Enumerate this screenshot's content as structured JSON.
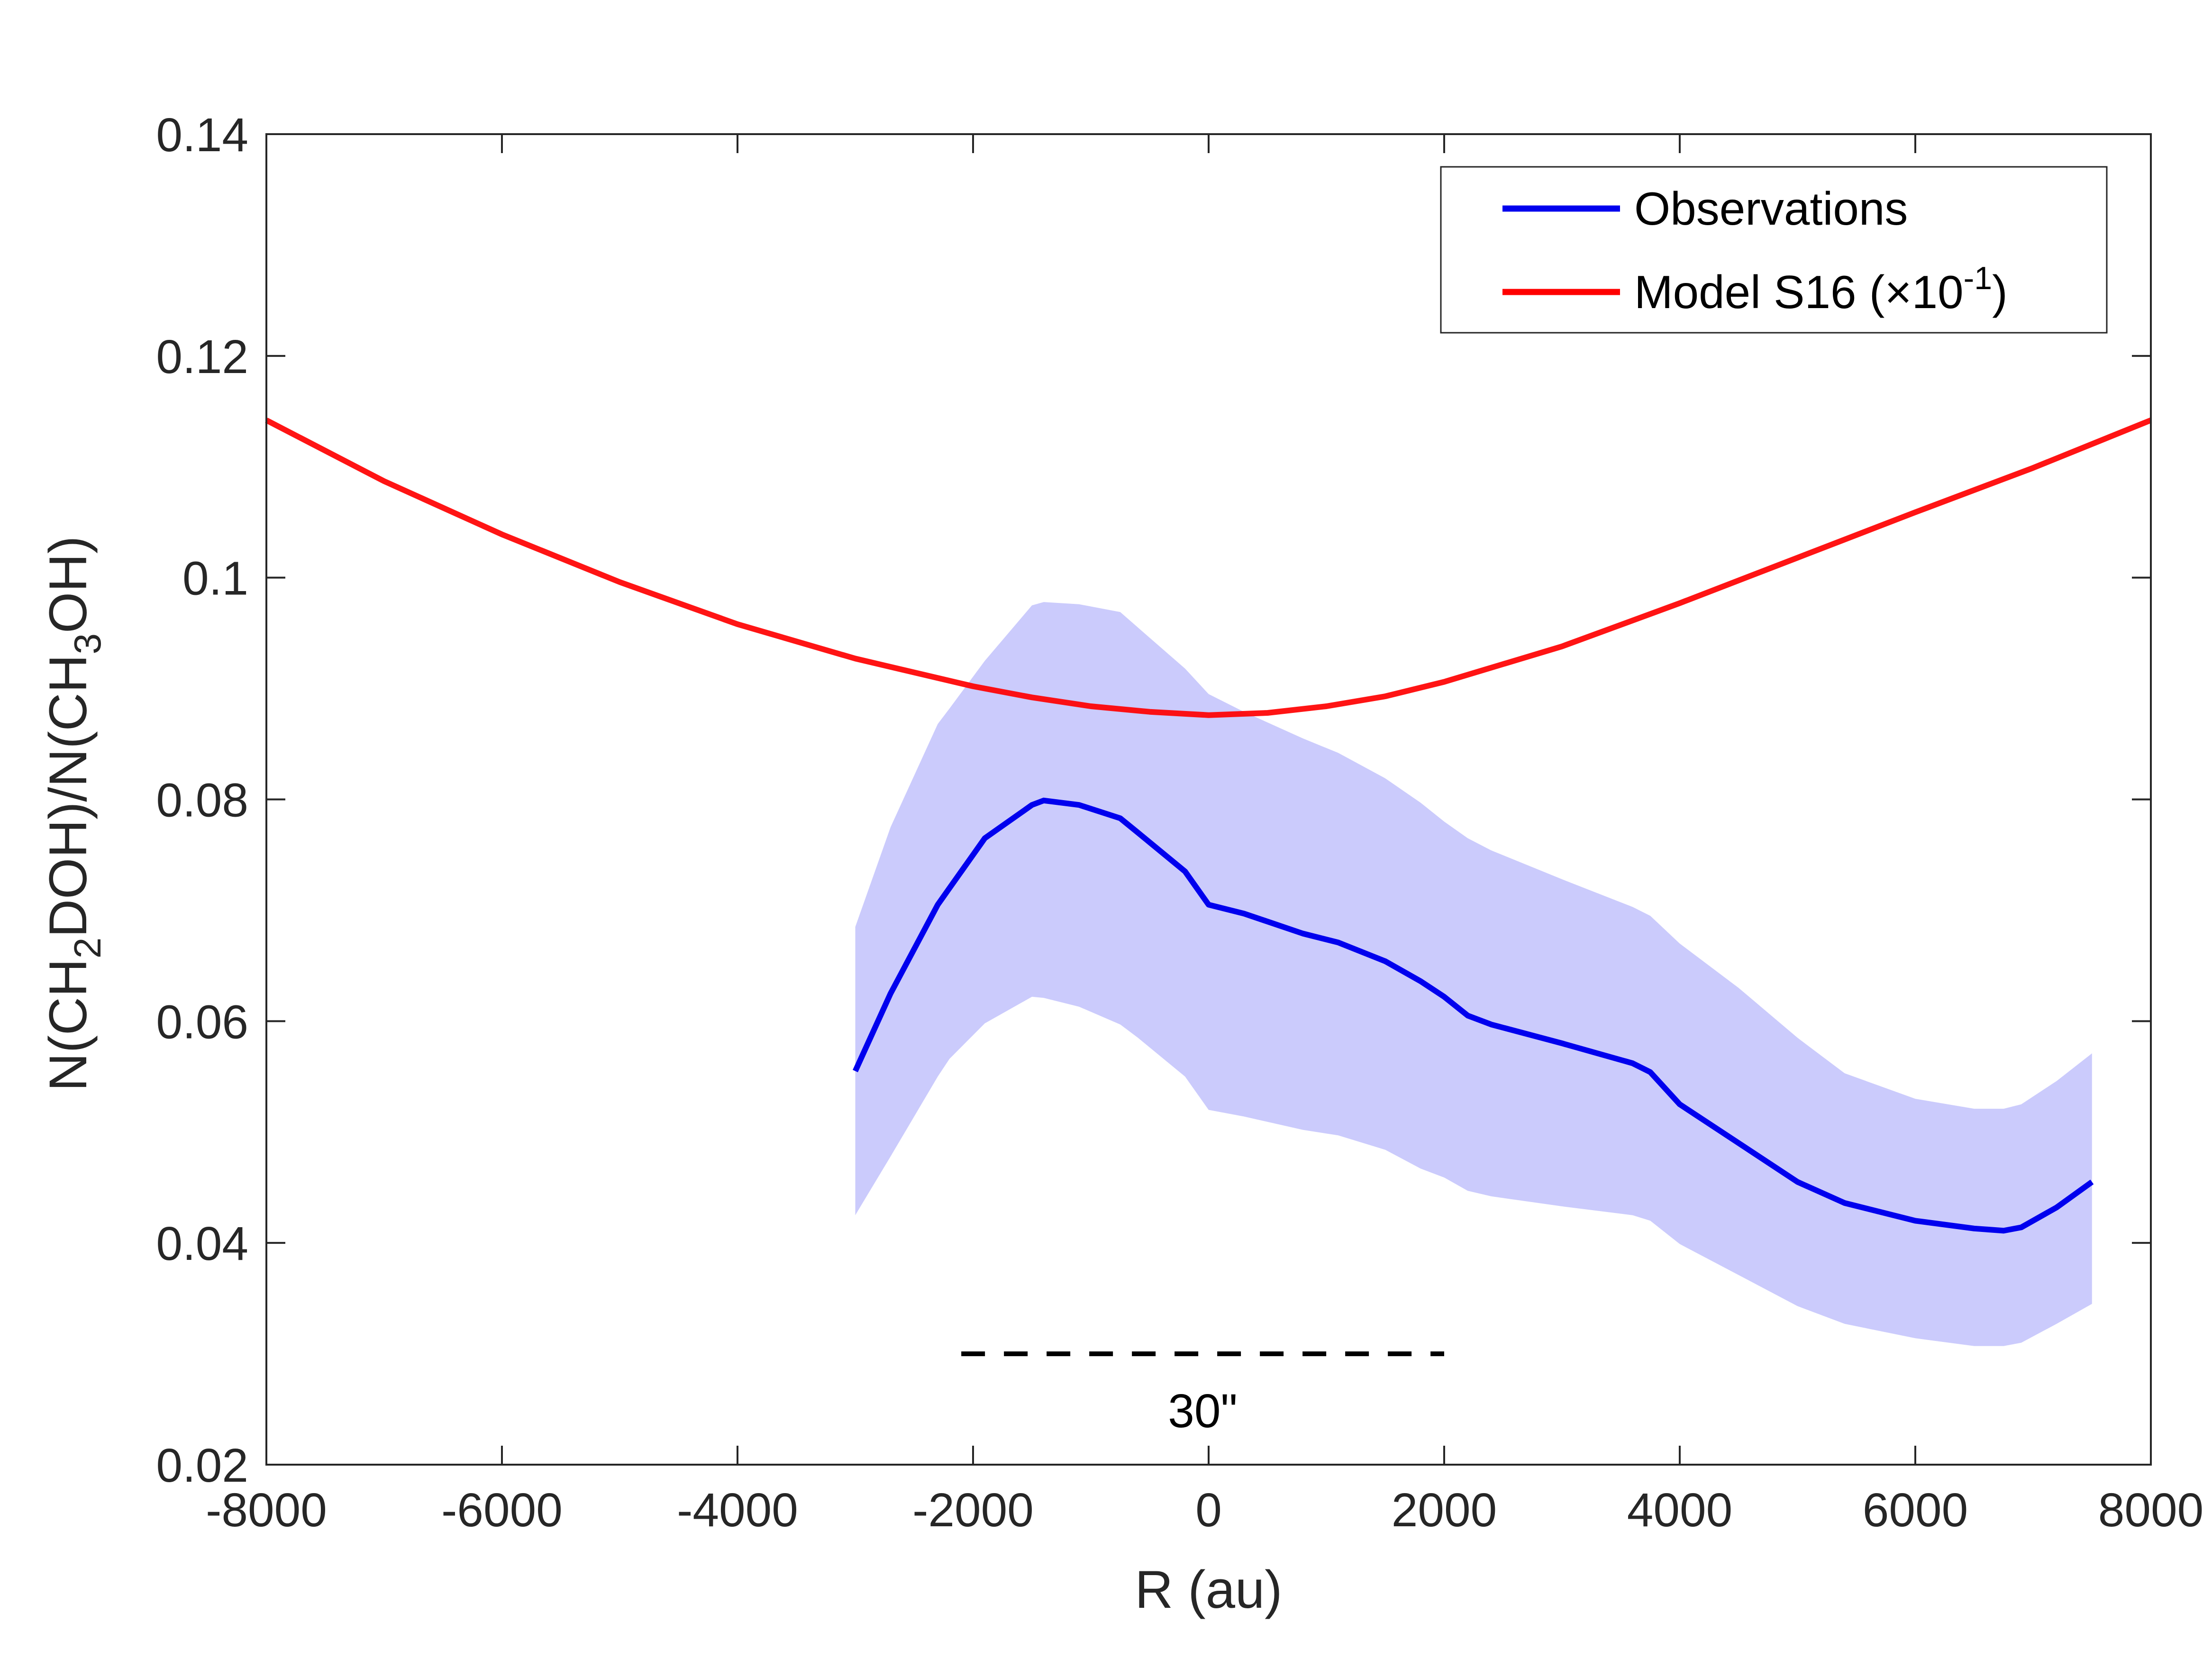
{
  "chart_data": {
    "type": "line",
    "title": "",
    "xlabel": "R (au)",
    "ylabel_parts": [
      "N(CH",
      "2",
      "DOH)/N(CH",
      "3",
      "OH)"
    ],
    "xlim": [
      -8000,
      8000
    ],
    "ylim": [
      0.02,
      0.14
    ],
    "x_ticks": [
      -8000,
      -6000,
      -4000,
      -2000,
      0,
      2000,
      4000,
      6000,
      8000
    ],
    "x_tick_labels": [
      "-8000",
      "-6000",
      "-4000",
      "-2000",
      "0",
      "2000",
      "4000",
      "6000",
      "8000"
    ],
    "y_ticks": [
      0.02,
      0.04,
      0.06,
      0.08,
      0.1,
      0.12,
      0.14
    ],
    "y_tick_labels": [
      "0.02",
      "0.04",
      "0.06",
      "0.08",
      "0.1",
      "0.12",
      "0.14"
    ],
    "grid": false,
    "legend_position": "top-right",
    "series": [
      {
        "name": "Observations",
        "color": "#0000ee",
        "x": [
          -3000,
          -2700,
          -2300,
          -2200,
          -1900,
          -1500,
          -1400,
          -1100,
          -750,
          -600,
          -200,
          0,
          300,
          800,
          1100,
          1500,
          1800,
          2000,
          2200,
          2400,
          3000,
          3600,
          3750,
          4000,
          4500,
          5000,
          5400,
          6000,
          6500,
          6750,
          6900,
          7200,
          7500
        ],
        "y": [
          0.0555,
          0.0625,
          0.0705,
          0.072,
          0.0765,
          0.0795,
          0.0799,
          0.0795,
          0.0783,
          0.077,
          0.0735,
          0.0705,
          0.0697,
          0.0679,
          0.0671,
          0.0654,
          0.0636,
          0.0622,
          0.0605,
          0.0597,
          0.058,
          0.0562,
          0.0554,
          0.0525,
          0.049,
          0.0455,
          0.0436,
          0.042,
          0.0413,
          0.0411,
          0.0414,
          0.0432,
          0.0455
        ],
        "upper": [
          0.0685,
          0.0775,
          0.0868,
          0.0882,
          0.0925,
          0.0975,
          0.0978,
          0.0976,
          0.0969,
          0.0955,
          0.0918,
          0.0895,
          0.0879,
          0.0855,
          0.0842,
          0.0819,
          0.0797,
          0.078,
          0.0765,
          0.0754,
          0.0728,
          0.0703,
          0.0695,
          0.067,
          0.063,
          0.0585,
          0.0553,
          0.053,
          0.0521,
          0.0521,
          0.0525,
          0.0546,
          0.0571
        ],
        "lower": [
          0.0425,
          0.0478,
          0.055,
          0.0566,
          0.0598,
          0.0622,
          0.0621,
          0.0613,
          0.0597,
          0.0585,
          0.055,
          0.052,
          0.0514,
          0.0502,
          0.0497,
          0.0484,
          0.0467,
          0.0459,
          0.0447,
          0.0442,
          0.0433,
          0.0425,
          0.042,
          0.0399,
          0.0371,
          0.0343,
          0.0327,
          0.0314,
          0.0307,
          0.0307,
          0.031,
          0.0327,
          0.0345
        ]
      },
      {
        "name": "Model S16 (×10⁻¹)",
        "color": "#ff0000",
        "x": [
          -8000,
          -7000,
          -6000,
          -5000,
          -4000,
          -3000,
          -2000,
          -1500,
          -1000,
          -500,
          0,
          500,
          1000,
          1500,
          2000,
          3000,
          4000,
          5000,
          6000,
          7000,
          8000
        ],
        "y": [
          0.1142,
          0.1087,
          0.1039,
          0.0996,
          0.0958,
          0.0927,
          0.0902,
          0.0892,
          0.0884,
          0.0879,
          0.0876,
          0.0878,
          0.0884,
          0.0893,
          0.0906,
          0.0938,
          0.0977,
          0.1018,
          0.1059,
          0.1099,
          0.1142
        ]
      }
    ],
    "legend": {
      "entries": [
        {
          "label": "Observations",
          "color": "#0000ee"
        },
        {
          "label": "Model S16 (×10",
          "sup": "-1",
          "tail": ")",
          "color": "#ff0000"
        }
      ]
    },
    "annotations": [
      {
        "type": "scale-bar",
        "label": "30\"",
        "x_range": [
          -2100,
          2000
        ],
        "y": 0.03
      }
    ]
  }
}
